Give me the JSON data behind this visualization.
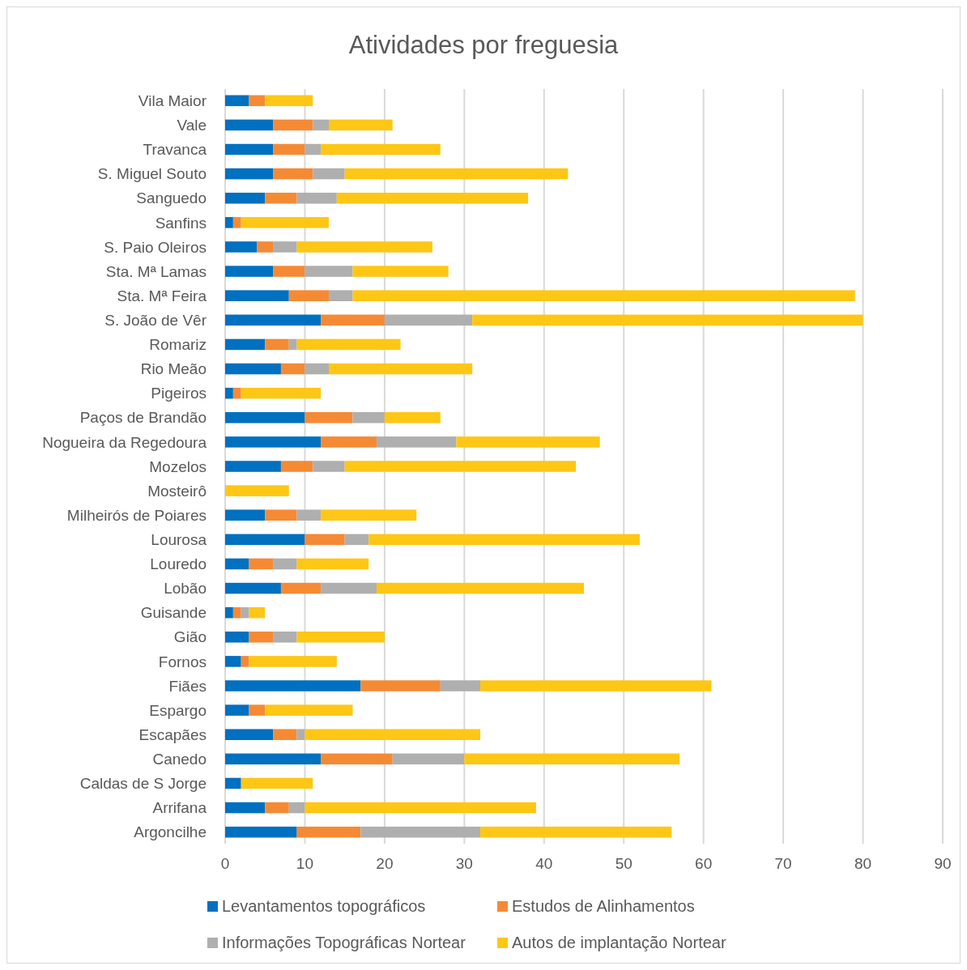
{
  "chart_data": {
    "type": "bar",
    "orientation": "horizontal",
    "stacked": true,
    "title": "Atividades por freguesia",
    "categories": [
      "Vila Maior",
      "Vale",
      "Travanca",
      "S. Miguel Souto",
      "Sanguedo",
      "Sanfins",
      "S. Paio Oleiros",
      "Sta. Mª Lamas",
      "Sta. Mª Feira",
      "S. João de Vêr",
      "Romariz",
      "Rio Meão",
      "Pigeiros",
      "Paços de Brandão",
      "Nogueira da Regedoura",
      "Mozelos",
      "Mosteirô",
      "Milheirós de Poiares",
      "Lourosa",
      "Louredo",
      "Lobão",
      "Guisande",
      "Gião",
      "Fornos",
      "Fiães",
      "Espargo",
      "Escapães",
      "Canedo",
      "Caldas de S Jorge",
      "Arrifana",
      "Argoncilhe"
    ],
    "series": [
      {
        "name": "Levantamentos topográficos",
        "color": "#0070c0",
        "values": [
          3,
          6,
          6,
          6,
          5,
          1,
          4,
          6,
          8,
          12,
          5,
          7,
          1,
          10,
          12,
          7,
          0,
          5,
          10,
          3,
          7,
          1,
          3,
          2,
          17,
          3,
          6,
          12,
          2,
          5,
          9
        ]
      },
      {
        "name": "Estudos de Alinhamentos",
        "color": "#f58a35",
        "values": [
          2,
          5,
          4,
          5,
          4,
          1,
          2,
          4,
          5,
          8,
          3,
          3,
          1,
          6,
          7,
          4,
          0,
          4,
          5,
          3,
          5,
          1,
          3,
          1,
          10,
          2,
          3,
          9,
          0,
          3,
          8
        ]
      },
      {
        "name": "Informações Topográficas Nortear",
        "color": "#afafb0",
        "values": [
          0,
          2,
          2,
          4,
          5,
          0,
          3,
          6,
          3,
          11,
          1,
          3,
          0,
          4,
          10,
          4,
          0,
          3,
          3,
          3,
          7,
          1,
          3,
          0,
          5,
          0,
          1,
          9,
          0,
          2,
          15
        ]
      },
      {
        "name": "Autos de implantação Nortear",
        "color": "#fec715",
        "values": [
          6,
          8,
          15,
          28,
          24,
          11,
          17,
          12,
          63,
          49,
          13,
          18,
          10,
          7,
          18,
          29,
          8,
          12,
          34,
          9,
          26,
          2,
          11,
          11,
          29,
          11,
          22,
          27,
          9,
          29,
          24
        ]
      }
    ],
    "xlim": [
      0,
      90
    ],
    "xticks": [
      0,
      10,
      20,
      30,
      40,
      50,
      60,
      70,
      80,
      90
    ],
    "grid": "x",
    "legend": "bottom"
  }
}
